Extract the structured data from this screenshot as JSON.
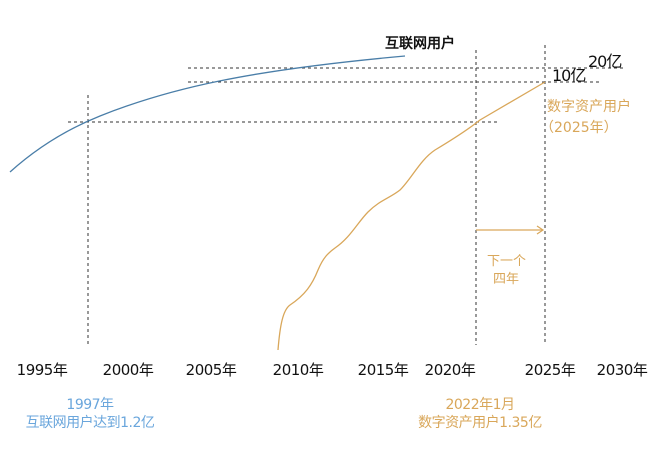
{
  "labels": {
    "internet_users": "互联网用户",
    "ten_yi": "10亿",
    "twenty_yi": "20亿",
    "digital_asset_users": "数字资产用户",
    "digital_asset_year": "（2025年）",
    "next_four_years_1": "下一个",
    "next_four_years_2": "四年"
  },
  "x_ticks": [
    "1995年",
    "2000年",
    "2005年",
    "2010年",
    "2015年",
    "2020年",
    "2025年",
    "2030年"
  ],
  "notes": {
    "internet": {
      "line1": "1997年",
      "line2": "互联网用户达到1.2亿"
    },
    "digital": {
      "line1": "2022年1月",
      "line2": "数字资产用户1.35亿"
    }
  },
  "colors": {
    "internet": "#4a7ea8",
    "digital": "#d9a75a",
    "note_blue": "#6aa6dc",
    "dash": "#333333"
  }
}
